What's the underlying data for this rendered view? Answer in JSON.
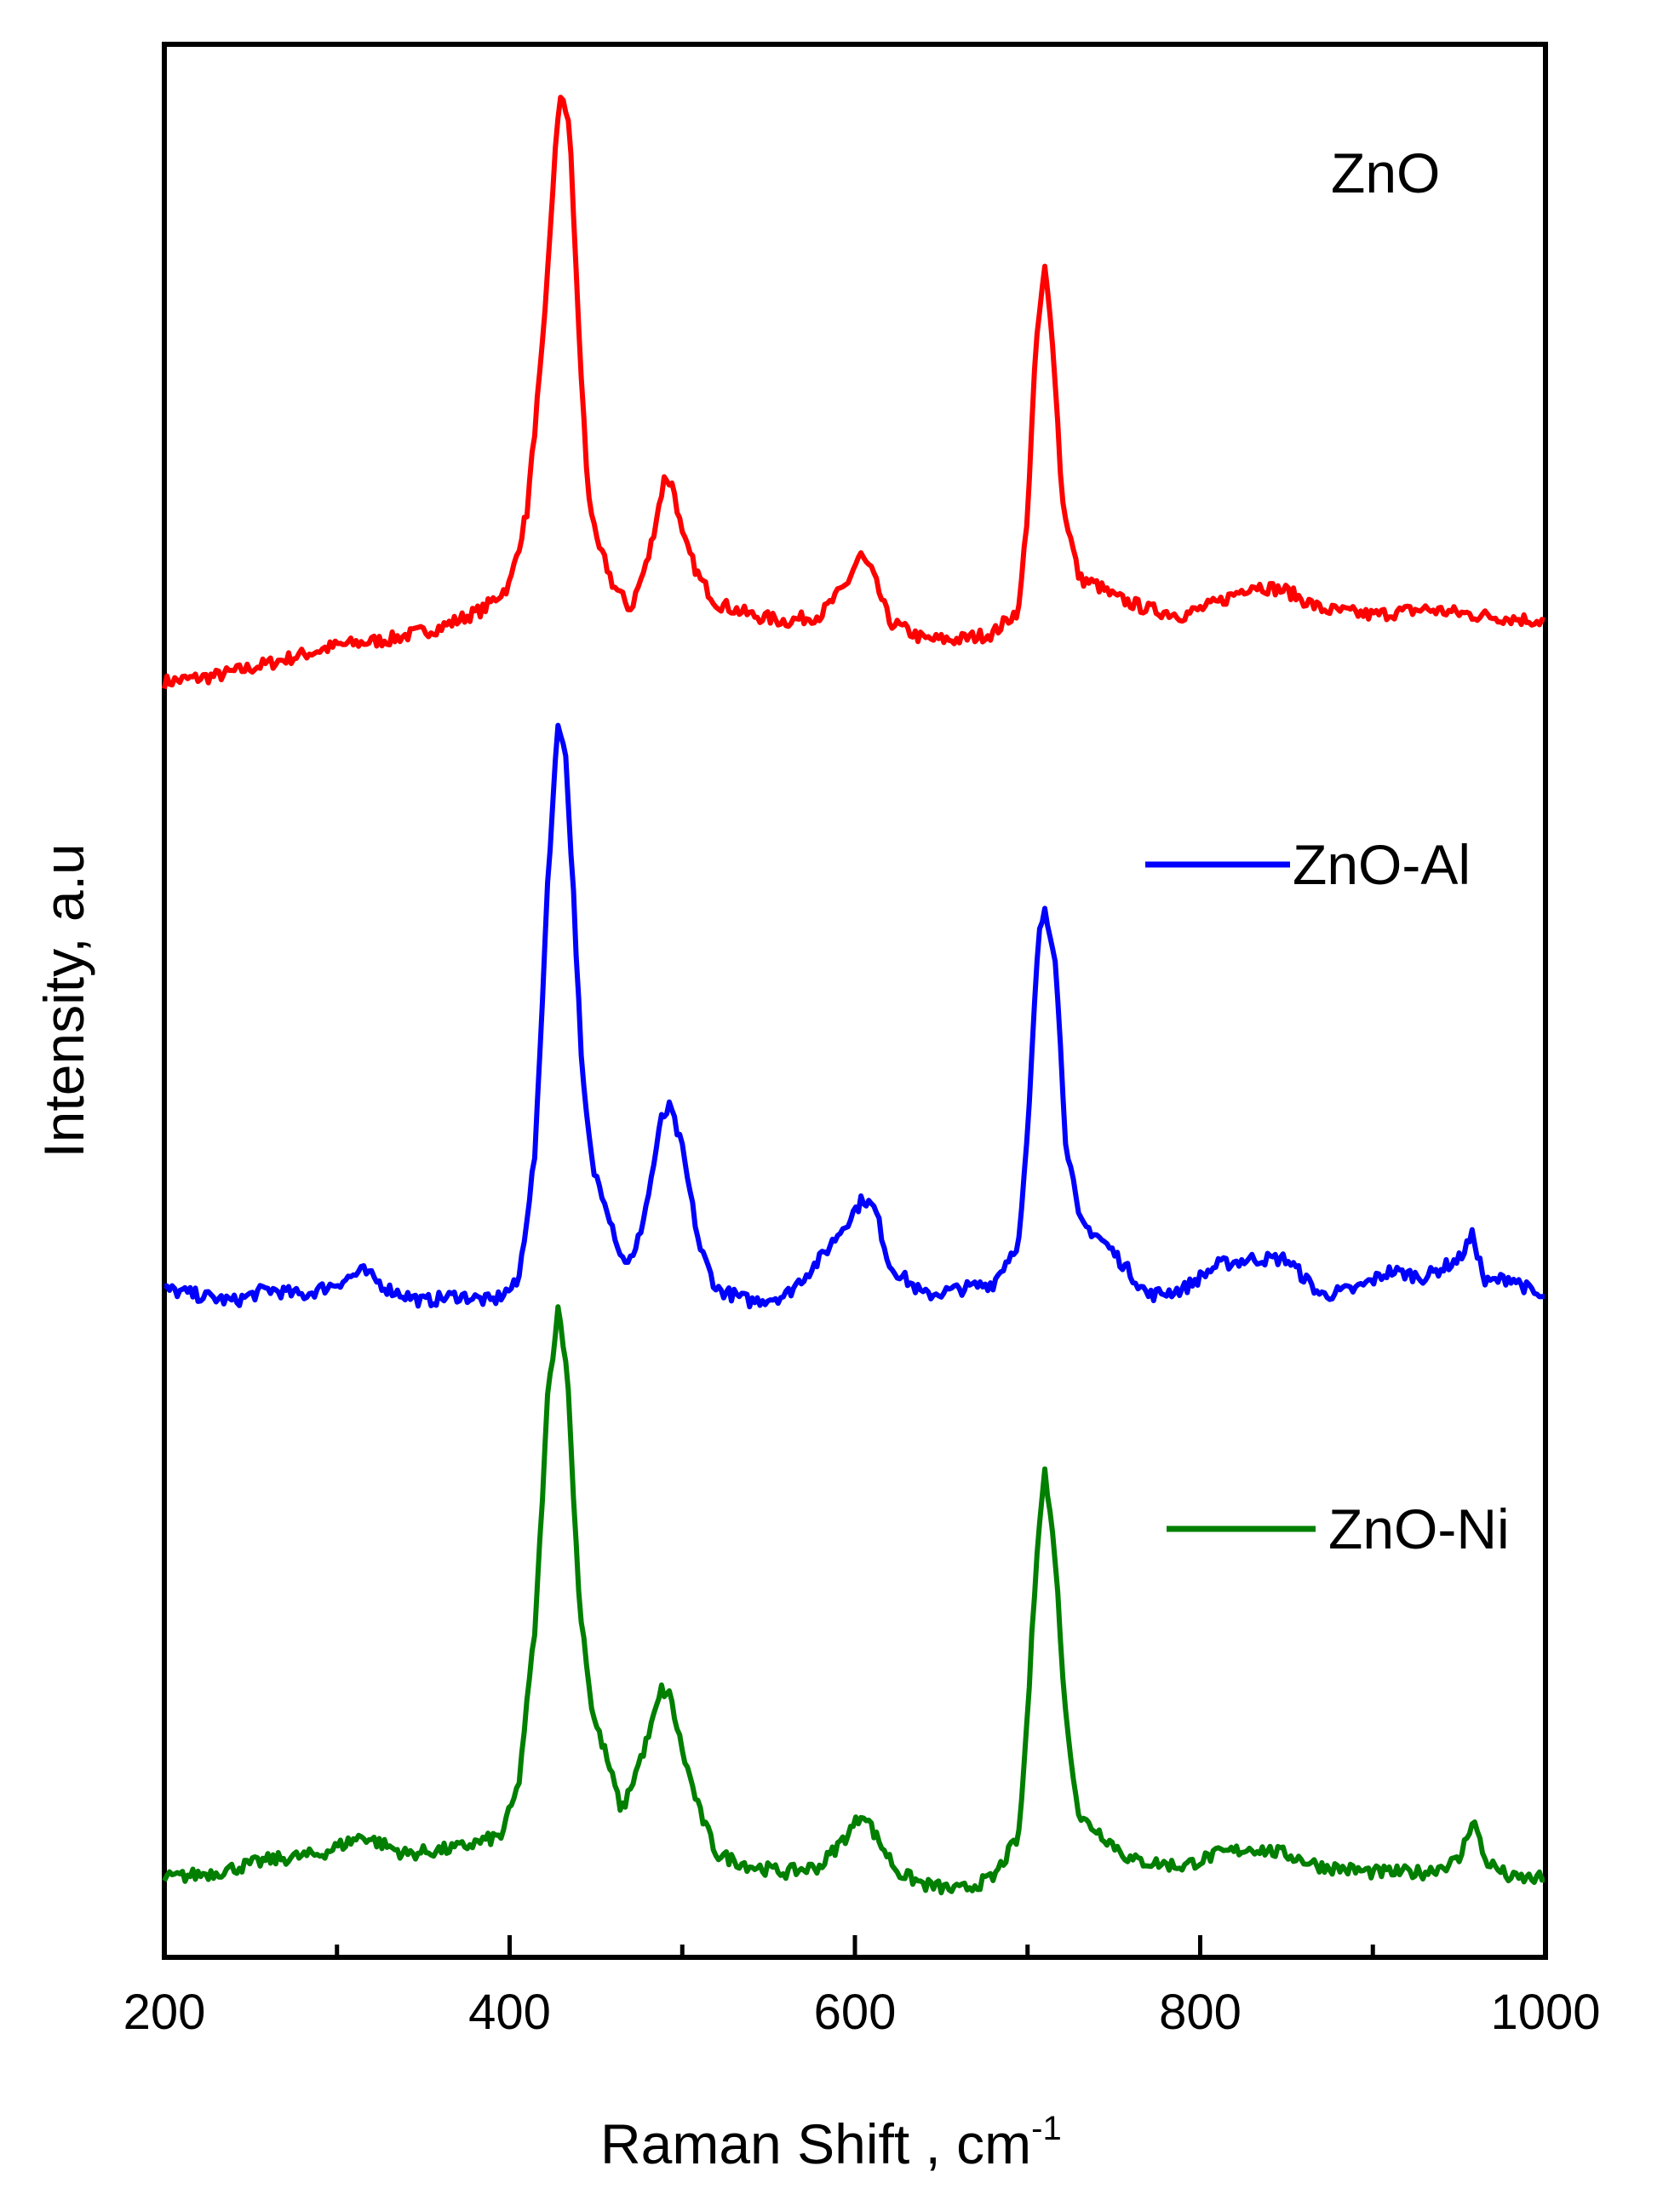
{
  "chart_data": {
    "type": "line",
    "xlabel": "Raman Shift , cm",
    "xlabel_superscript": "-1",
    "ylabel": "Intensity, a.u",
    "xlim": [
      200,
      1000
    ],
    "x_ticks": [
      200,
      400,
      600,
      800,
      1000
    ],
    "x_tick_labels": [
      "200",
      "400",
      "600",
      "800",
      "1000"
    ],
    "y_ticks_shown": false,
    "grid": false,
    "note": "y values are relative intensity in arbitrary units; each series is vertically offset as shown",
    "series": [
      {
        "name": "ZnO",
        "color": "#ff0000",
        "points": [
          [
            200,
            0.02
          ],
          [
            230,
            0.03
          ],
          [
            260,
            0.05
          ],
          [
            300,
            0.08
          ],
          [
            330,
            0.09
          ],
          [
            360,
            0.11
          ],
          [
            385,
            0.14
          ],
          [
            400,
            0.18
          ],
          [
            410,
            0.3
          ],
          [
            420,
            0.6
          ],
          [
            426,
            0.88
          ],
          [
            430,
            1.0
          ],
          [
            435,
            0.92
          ],
          [
            440,
            0.6
          ],
          [
            445,
            0.35
          ],
          [
            450,
            0.25
          ],
          [
            455,
            0.22
          ],
          [
            460,
            0.18
          ],
          [
            470,
            0.14
          ],
          [
            480,
            0.22
          ],
          [
            490,
            0.36
          ],
          [
            495,
            0.34
          ],
          [
            500,
            0.26
          ],
          [
            510,
            0.19
          ],
          [
            520,
            0.15
          ],
          [
            540,
            0.13
          ],
          [
            560,
            0.12
          ],
          [
            580,
            0.13
          ],
          [
            595,
            0.18
          ],
          [
            603,
            0.23
          ],
          [
            610,
            0.2
          ],
          [
            620,
            0.12
          ],
          [
            640,
            0.09
          ],
          [
            660,
            0.09
          ],
          [
            680,
            0.1
          ],
          [
            695,
            0.14
          ],
          [
            700,
            0.3
          ],
          [
            705,
            0.58
          ],
          [
            710,
            0.7
          ],
          [
            715,
            0.57
          ],
          [
            720,
            0.32
          ],
          [
            730,
            0.19
          ],
          [
            740,
            0.18
          ],
          [
            750,
            0.16
          ],
          [
            770,
            0.14
          ],
          [
            790,
            0.13
          ],
          [
            810,
            0.15
          ],
          [
            830,
            0.18
          ],
          [
            850,
            0.17
          ],
          [
            870,
            0.14
          ],
          [
            900,
            0.13
          ],
          [
            930,
            0.14
          ],
          [
            960,
            0.13
          ],
          [
            1000,
            0.12
          ]
        ]
      },
      {
        "name": "ZnO-Al",
        "color": "#0000ff",
        "points": [
          [
            200,
            0.05
          ],
          [
            220,
            0.04
          ],
          [
            240,
            0.03
          ],
          [
            260,
            0.05
          ],
          [
            280,
            0.04
          ],
          [
            300,
            0.06
          ],
          [
            315,
            0.08
          ],
          [
            330,
            0.05
          ],
          [
            350,
            0.03
          ],
          [
            370,
            0.04
          ],
          [
            390,
            0.03
          ],
          [
            405,
            0.06
          ],
          [
            415,
            0.28
          ],
          [
            422,
            0.72
          ],
          [
            428,
            0.98
          ],
          [
            432,
            0.95
          ],
          [
            437,
            0.7
          ],
          [
            442,
            0.4
          ],
          [
            448,
            0.25
          ],
          [
            455,
            0.2
          ],
          [
            465,
            0.1
          ],
          [
            472,
            0.1
          ],
          [
            480,
            0.2
          ],
          [
            488,
            0.33
          ],
          [
            493,
            0.35
          ],
          [
            500,
            0.28
          ],
          [
            510,
            0.12
          ],
          [
            520,
            0.05
          ],
          [
            540,
            0.03
          ],
          [
            560,
            0.04
          ],
          [
            580,
            0.1
          ],
          [
            595,
            0.16
          ],
          [
            605,
            0.2
          ],
          [
            612,
            0.18
          ],
          [
            620,
            0.09
          ],
          [
            640,
            0.04
          ],
          [
            660,
            0.05
          ],
          [
            680,
            0.06
          ],
          [
            695,
            0.13
          ],
          [
            700,
            0.3
          ],
          [
            706,
            0.62
          ],
          [
            710,
            0.68
          ],
          [
            716,
            0.6
          ],
          [
            722,
            0.3
          ],
          [
            730,
            0.16
          ],
          [
            740,
            0.14
          ],
          [
            750,
            0.11
          ],
          [
            770,
            0.04
          ],
          [
            790,
            0.05
          ],
          [
            810,
            0.09
          ],
          [
            830,
            0.1
          ],
          [
            850,
            0.1
          ],
          [
            870,
            0.04
          ],
          [
            890,
            0.05
          ],
          [
            910,
            0.08
          ],
          [
            930,
            0.07
          ],
          [
            950,
            0.1
          ],
          [
            958,
            0.14
          ],
          [
            965,
            0.06
          ],
          [
            980,
            0.07
          ],
          [
            1000,
            0.03
          ]
        ]
      },
      {
        "name": "ZnO-Ni",
        "color": "#007f00",
        "points": [
          [
            200,
            0.03
          ],
          [
            230,
            0.04
          ],
          [
            260,
            0.06
          ],
          [
            290,
            0.07
          ],
          [
            315,
            0.1
          ],
          [
            340,
            0.07
          ],
          [
            370,
            0.08
          ],
          [
            395,
            0.1
          ],
          [
            405,
            0.18
          ],
          [
            415,
            0.45
          ],
          [
            422,
            0.82
          ],
          [
            428,
            0.97
          ],
          [
            433,
            0.88
          ],
          [
            440,
            0.5
          ],
          [
            448,
            0.3
          ],
          [
            455,
            0.24
          ],
          [
            465,
            0.14
          ],
          [
            480,
            0.26
          ],
          [
            488,
            0.34
          ],
          [
            493,
            0.33
          ],
          [
            500,
            0.24
          ],
          [
            510,
            0.14
          ],
          [
            520,
            0.07
          ],
          [
            540,
            0.05
          ],
          [
            560,
            0.04
          ],
          [
            580,
            0.05
          ],
          [
            595,
            0.1
          ],
          [
            605,
            0.14
          ],
          [
            612,
            0.1
          ],
          [
            625,
            0.04
          ],
          [
            640,
            0.02
          ],
          [
            660,
            0.01
          ],
          [
            680,
            0.03
          ],
          [
            695,
            0.1
          ],
          [
            700,
            0.3
          ],
          [
            706,
            0.6
          ],
          [
            710,
            0.7
          ],
          [
            716,
            0.56
          ],
          [
            722,
            0.3
          ],
          [
            730,
            0.13
          ],
          [
            740,
            0.11
          ],
          [
            760,
            0.06
          ],
          [
            790,
            0.05
          ],
          [
            810,
            0.07
          ],
          [
            830,
            0.08
          ],
          [
            850,
            0.07
          ],
          [
            870,
            0.05
          ],
          [
            900,
            0.04
          ],
          [
            930,
            0.04
          ],
          [
            950,
            0.06
          ],
          [
            958,
            0.13
          ],
          [
            965,
            0.06
          ],
          [
            980,
            0.03
          ],
          [
            1000,
            0.03
          ]
        ]
      }
    ],
    "series_offsets": [
      1.98,
      0.95,
      0.0
    ],
    "ylim": [
      -0.1,
      3.05
    ],
    "labels": {
      "zno_label": "ZnO",
      "znoal_label": "ZnO-Al",
      "znoni_label": "ZnO-Ni"
    }
  }
}
